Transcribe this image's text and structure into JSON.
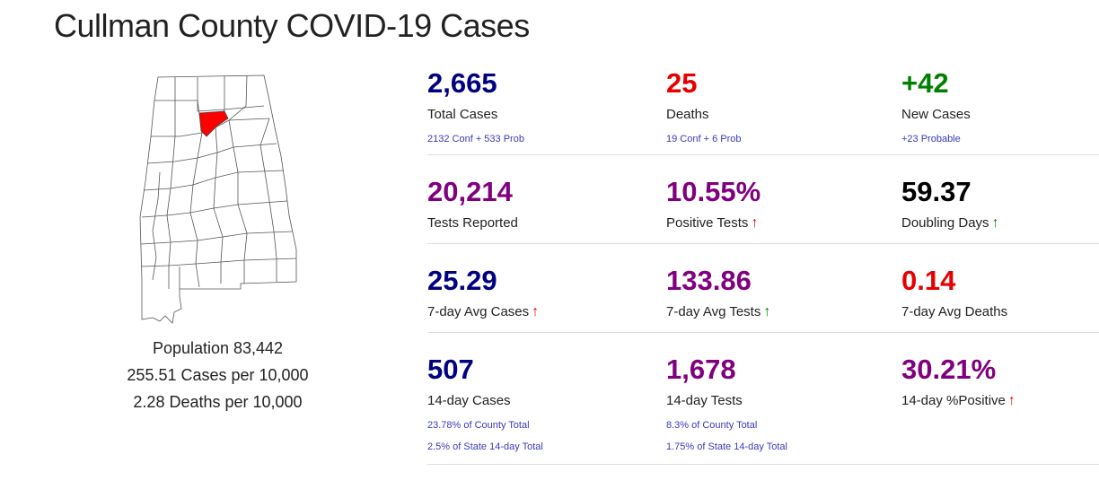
{
  "page": {
    "title": "Cullman County COVID-19 Cases"
  },
  "colors": {
    "navy": "#000080",
    "red": "#e60000",
    "green": "#008000",
    "purple": "#800080",
    "black": "#000000",
    "up_red": "#e60000",
    "up_green": "#008000",
    "county_highlight": "#ff0000"
  },
  "icons": {
    "trend_up": "up-arrow-icon"
  },
  "county": {
    "population": "Population 83,442",
    "cases_per": "255.51 Cases per 10,000",
    "deaths_per": "2.28 Deaths per 10,000"
  },
  "stats": {
    "total_cases": {
      "value": "2,665",
      "label": "Total Cases",
      "sub": "2132 Conf + 533 Prob"
    },
    "deaths": {
      "value": "25",
      "label": "Deaths",
      "sub": "19 Conf + 6 Prob"
    },
    "new_cases": {
      "value": "+42",
      "label": "New Cases",
      "sub": "+23 Probable"
    },
    "tests_reported": {
      "value": "20,214",
      "label": "Tests Reported"
    },
    "positive_tests": {
      "value": "10.55%",
      "label": "Positive Tests",
      "arrow": "↑"
    },
    "doubling_days": {
      "value": "59.37",
      "label": "Doubling Days",
      "arrow": "↑"
    },
    "avg_cases_7": {
      "value": "25.29",
      "label": "7-day Avg Cases",
      "arrow": "↑"
    },
    "avg_tests_7": {
      "value": "133.86",
      "label": "7-day Avg Tests",
      "arrow": "↑"
    },
    "avg_deaths_7": {
      "value": "0.14",
      "label": "7-day Avg Deaths"
    },
    "cases_14": {
      "value": "507",
      "label": "14-day Cases",
      "sub1": "23.78% of County Total",
      "sub2": "2.5% of State 14-day Total"
    },
    "tests_14": {
      "value": "1,678",
      "label": "14-day Tests",
      "sub1": "8.3% of County Total",
      "sub2": "1.75% of State 14-day Total"
    },
    "positive_14": {
      "value": "30.21%",
      "label": "14-day %Positive",
      "arrow": "↑"
    }
  }
}
